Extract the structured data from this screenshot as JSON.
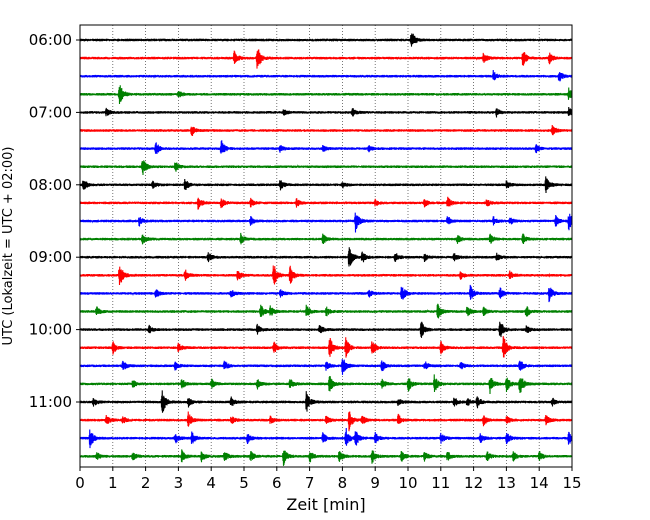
{
  "chart_data": {
    "type": "line",
    "subtype": "helicorder",
    "xlabel": "Zeit  [min]",
    "ylabel": "UTC (Lokalzeit = UTC + 02:00)",
    "xlim": [
      0,
      15
    ],
    "x_ticks": [
      "0",
      "1",
      "2",
      "3",
      "4",
      "5",
      "6",
      "7",
      "8",
      "9",
      "10",
      "11",
      "12",
      "13",
      "14",
      "15"
    ],
    "grid": "vertical dotted",
    "trace_interval_min": 15,
    "trace_colors": [
      "#000000",
      "#ff0000",
      "#0000ff",
      "#008000"
    ],
    "y_tick_labels": [
      {
        "trace": 0,
        "label": "06:00"
      },
      {
        "trace": 4,
        "label": "07:00"
      },
      {
        "trace": 8,
        "label": "08:00"
      },
      {
        "trace": 12,
        "label": "09:00"
      },
      {
        "trace": 16,
        "label": "10:00"
      },
      {
        "trace": 20,
        "label": "11:00"
      }
    ],
    "series": [
      {
        "start": "06:00",
        "events": [
          [
            10.1,
            1.0
          ]
        ]
      },
      {
        "start": "06:15",
        "events": [
          [
            4.7,
            0.7
          ],
          [
            5.4,
            1.4
          ],
          [
            12.3,
            0.5
          ],
          [
            13.5,
            0.8
          ],
          [
            14.3,
            0.6
          ]
        ]
      },
      {
        "start": "06:30",
        "events": [
          [
            12.6,
            0.5
          ],
          [
            14.6,
            0.6
          ]
        ]
      },
      {
        "start": "06:45",
        "events": [
          [
            1.2,
            1.2
          ],
          [
            3.0,
            0.4
          ],
          [
            14.9,
            0.6
          ]
        ]
      },
      {
        "start": "07:00",
        "events": [
          [
            0.8,
            0.4
          ],
          [
            6.2,
            0.3
          ],
          [
            8.3,
            0.4
          ],
          [
            12.7,
            0.4
          ],
          [
            14.9,
            0.5
          ]
        ]
      },
      {
        "start": "07:15",
        "events": [
          [
            3.4,
            0.6
          ],
          [
            14.4,
            0.5
          ]
        ]
      },
      {
        "start": "07:30",
        "events": [
          [
            2.3,
            0.7
          ],
          [
            4.3,
            0.9
          ],
          [
            6.1,
            0.4
          ],
          [
            7.4,
            0.3
          ],
          [
            8.8,
            0.3
          ],
          [
            13.9,
            0.4
          ]
        ]
      },
      {
        "start": "07:45",
        "events": [
          [
            1.9,
            0.9
          ],
          [
            2.9,
            0.5
          ]
        ]
      },
      {
        "start": "08:00",
        "events": [
          [
            0.1,
            0.6
          ],
          [
            2.2,
            0.4
          ],
          [
            3.2,
            0.6
          ],
          [
            6.1,
            0.5
          ],
          [
            8.0,
            0.3
          ],
          [
            13.0,
            0.4
          ],
          [
            14.2,
            1.0
          ]
        ]
      },
      {
        "start": "08:15",
        "events": [
          [
            3.6,
            0.7
          ],
          [
            4.3,
            0.5
          ],
          [
            5.2,
            0.4
          ],
          [
            6.6,
            0.4
          ],
          [
            9.0,
            0.3
          ],
          [
            10.5,
            0.4
          ],
          [
            11.2,
            0.6
          ],
          [
            12.4,
            0.4
          ]
        ]
      },
      {
        "start": "08:30",
        "events": [
          [
            1.8,
            0.5
          ],
          [
            5.2,
            0.4
          ],
          [
            8.4,
            1.1
          ],
          [
            11.2,
            0.5
          ],
          [
            12.6,
            0.4
          ],
          [
            13.1,
            0.4
          ],
          [
            14.5,
            0.5
          ],
          [
            14.9,
            0.9
          ]
        ]
      },
      {
        "start": "08:45",
        "events": [
          [
            1.9,
            0.6
          ],
          [
            4.9,
            0.5
          ],
          [
            7.4,
            0.5
          ],
          [
            11.5,
            0.4
          ],
          [
            12.5,
            0.5
          ],
          [
            13.5,
            0.5
          ]
        ]
      },
      {
        "start": "09:00",
        "events": [
          [
            3.9,
            0.5
          ],
          [
            8.2,
            1.2
          ],
          [
            8.6,
            0.6
          ],
          [
            9.6,
            0.5
          ],
          [
            10.5,
            0.4
          ],
          [
            11.4,
            0.4
          ],
          [
            12.7,
            0.4
          ]
        ]
      },
      {
        "start": "09:15",
        "events": [
          [
            1.2,
            1.3
          ],
          [
            3.2,
            0.6
          ],
          [
            4.8,
            0.6
          ],
          [
            5.9,
            1.2
          ],
          [
            6.4,
            1.0
          ],
          [
            11.6,
            0.4
          ],
          [
            13.1,
            0.4
          ]
        ]
      },
      {
        "start": "09:30",
        "events": [
          [
            2.3,
            0.5
          ],
          [
            4.6,
            0.4
          ],
          [
            6.1,
            0.4
          ],
          [
            8.8,
            0.4
          ],
          [
            9.8,
            1.0
          ],
          [
            11.9,
            0.8
          ],
          [
            12.8,
            0.6
          ],
          [
            14.3,
            0.8
          ]
        ]
      },
      {
        "start": "09:45",
        "events": [
          [
            0.5,
            0.5
          ],
          [
            5.5,
            0.7
          ],
          [
            5.8,
            0.6
          ],
          [
            6.9,
            0.6
          ],
          [
            7.5,
            0.5
          ],
          [
            10.9,
            0.8
          ],
          [
            11.8,
            0.5
          ],
          [
            12.3,
            0.4
          ],
          [
            13.6,
            0.6
          ]
        ]
      },
      {
        "start": "10:00",
        "events": [
          [
            2.1,
            0.4
          ],
          [
            5.4,
            0.5
          ],
          [
            7.3,
            0.5
          ],
          [
            10.4,
            0.9
          ],
          [
            12.8,
            1.0
          ],
          [
            13.6,
            0.4
          ]
        ]
      },
      {
        "start": "10:15",
        "events": [
          [
            1.0,
            0.6
          ],
          [
            3.0,
            0.5
          ],
          [
            5.9,
            0.6
          ],
          [
            7.6,
            1.2
          ],
          [
            8.1,
            1.0
          ],
          [
            8.9,
            0.8
          ],
          [
            11.0,
            0.6
          ],
          [
            12.9,
            1.3
          ]
        ]
      },
      {
        "start": "10:30",
        "events": [
          [
            1.3,
            0.5
          ],
          [
            2.9,
            0.4
          ],
          [
            4.4,
            0.5
          ],
          [
            7.5,
            0.4
          ],
          [
            8.0,
            1.0
          ],
          [
            9.2,
            0.6
          ],
          [
            10.5,
            0.5
          ],
          [
            11.6,
            0.4
          ],
          [
            13.4,
            0.7
          ]
        ]
      },
      {
        "start": "10:45",
        "events": [
          [
            1.6,
            0.4
          ],
          [
            3.1,
            0.6
          ],
          [
            4.0,
            0.5
          ],
          [
            5.4,
            0.5
          ],
          [
            6.4,
            0.5
          ],
          [
            7.6,
            0.9
          ],
          [
            9.2,
            0.5
          ],
          [
            10.0,
            0.8
          ],
          [
            10.8,
            0.9
          ],
          [
            12.5,
            0.9
          ],
          [
            13.0,
            0.8
          ],
          [
            13.4,
            1.2
          ]
        ]
      },
      {
        "start": "11:00",
        "events": [
          [
            0.4,
            0.5
          ],
          [
            2.5,
            1.3
          ],
          [
            3.3,
            0.5
          ],
          [
            4.6,
            0.5
          ],
          [
            6.9,
            1.1
          ],
          [
            9.7,
            0.4
          ],
          [
            11.4,
            0.5
          ],
          [
            11.8,
            0.4
          ],
          [
            12.1,
            0.6
          ],
          [
            14.4,
            0.4
          ]
        ]
      },
      {
        "start": "11:15",
        "events": [
          [
            0.8,
            0.5
          ],
          [
            1.3,
            0.4
          ],
          [
            3.3,
            0.8
          ],
          [
            4.6,
            0.5
          ],
          [
            5.8,
            0.4
          ],
          [
            7.5,
            0.4
          ],
          [
            8.2,
            1.0
          ],
          [
            8.6,
            0.5
          ],
          [
            9.7,
            0.6
          ],
          [
            12.3,
            0.5
          ],
          [
            13.0,
            0.4
          ],
          [
            14.2,
            0.5
          ]
        ]
      },
      {
        "start": "11:30",
        "events": [
          [
            0.3,
            1.0
          ],
          [
            2.9,
            0.6
          ],
          [
            3.4,
            0.7
          ],
          [
            5.1,
            0.5
          ],
          [
            7.4,
            0.5
          ],
          [
            8.1,
            1.2
          ],
          [
            8.4,
            0.8
          ],
          [
            9.0,
            0.6
          ],
          [
            11.0,
            0.5
          ],
          [
            12.2,
            0.5
          ],
          [
            13.0,
            0.6
          ],
          [
            14.9,
            0.7
          ]
        ]
      },
      {
        "start": "11:45",
        "events": [
          [
            0.5,
            0.4
          ],
          [
            1.6,
            0.5
          ],
          [
            3.1,
            0.6
          ],
          [
            3.7,
            0.5
          ],
          [
            4.4,
            0.5
          ],
          [
            5.2,
            0.5
          ],
          [
            6.2,
            0.9
          ],
          [
            7.0,
            0.6
          ],
          [
            7.9,
            0.6
          ],
          [
            8.9,
            0.7
          ],
          [
            9.8,
            0.5
          ],
          [
            10.5,
            0.5
          ],
          [
            11.2,
            0.5
          ],
          [
            12.4,
            0.5
          ],
          [
            13.2,
            0.5
          ],
          [
            14.0,
            0.5
          ]
        ]
      }
    ]
  }
}
